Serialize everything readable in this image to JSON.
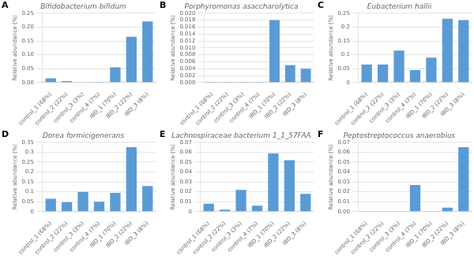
{
  "chart_data": [
    {
      "type": "bar",
      "title": "Bifidobacterium bifidum",
      "annotations": [
        "A"
      ],
      "ylabel": "Relative abundance (%)",
      "categories": [
        "control_1 (68%)",
        "control_2 (22%)",
        "control_3 (3%)",
        "control_4 (7%)",
        "IBD_1 (70%)",
        "IBD_2 (22%)",
        "IBD_3 (8%)"
      ],
      "values": [
        0.015,
        0.005,
        0.002,
        0.001,
        0.055,
        0.165,
        0.22
      ],
      "color": "#5B9BD5",
      "ylim": [
        0,
        0.25
      ],
      "yticks": [
        {
          "value": 0,
          "label": "0.00"
        },
        0.05,
        {
          "value": 0.1,
          "label": "0.10"
        },
        0.15,
        {
          "value": 0.2,
          "label": "0.20"
        },
        0.25
      ],
      "grid": true
    },
    {
      "type": "bar",
      "title": "Porphyromonas asaccharolytica",
      "annotations": [
        "B"
      ],
      "ylabel": "Relative abundance (%)",
      "categories": [
        "control_1 (68%)",
        "control_2 (22%)",
        "control_3 (3%)",
        "control_4 (7%)",
        "IBD_1 (70%)",
        "IBD_2 (22%)",
        "IBD_3 (8%)"
      ],
      "values": [
        0.0001,
        0.0001,
        0.0001,
        0.0001,
        0.018,
        0.005,
        0.004
      ],
      "color": "#5B9BD5",
      "ylim": [
        0,
        0.02
      ],
      "yticks": [
        {
          "value": 0,
          "label": "0.000"
        },
        0.002,
        0.004,
        0.006,
        0.008,
        {
          "value": 0.01,
          "label": "0.010"
        },
        0.012,
        0.014,
        0.016,
        0.018,
        {
          "value": 0.02,
          "label": "0.020"
        }
      ],
      "grid": true
    },
    {
      "type": "bar",
      "title": "Eubacterium hallii",
      "annotations": [
        "C"
      ],
      "ylabel": "Relative abundance (%)",
      "categories": [
        "control_1 (68%)",
        "control_2 (22%)",
        "control_3 (3%)",
        "control_4 (7%)",
        "IBD_1 (70%)",
        "IBD_2 (22%)",
        "IBD_3 (8%)"
      ],
      "values": [
        0.065,
        0.065,
        0.115,
        0.045,
        0.09,
        0.23,
        0.225
      ],
      "color": "#5B9BD5",
      "ylim": [
        0,
        0.25
      ],
      "yticks": [
        0,
        0.05,
        0.1,
        0.15,
        0.2,
        0.25
      ],
      "grid": true
    },
    {
      "type": "bar",
      "title": "Dorea formicigenerans",
      "annotations": [
        "D"
      ],
      "ylabel": "Relative abundance (%)",
      "categories": [
        "control_1 (68%)",
        "control_2 (22%)",
        "control_3 (3%)",
        "control_4 (7%)",
        "IBD_1 (70%)",
        "IBD_2 (22%)",
        "IBD_3 (8%)"
      ],
      "values": [
        0.065,
        0.048,
        0.1,
        0.05,
        0.095,
        0.325,
        0.13
      ],
      "color": "#5B9BD5",
      "ylim": [
        0,
        0.35
      ],
      "yticks": [
        0,
        0.05,
        0.1,
        0.15,
        0.2,
        0.25,
        0.3,
        0.35
      ],
      "grid": true
    },
    {
      "type": "bar",
      "title": "Lachnospiraceae bacterium 1_1_57FAA",
      "annotations": [
        "E"
      ],
      "ylabel": "Relative abundance (%)",
      "categories": [
        "control_1 (68%)",
        "control_2 (22%)",
        "control_3 (3%)",
        "control_4 (7%)",
        "IBD_1 (70%)",
        "IBD_2 (22%)",
        "IBD_3 (8%)"
      ],
      "values": [
        0.008,
        0.002,
        0.022,
        0.006,
        0.059,
        0.052,
        0.018
      ],
      "color": "#5B9BD5",
      "ylim": [
        0,
        0.07
      ],
      "yticks": [
        0,
        0.01,
        0.02,
        0.03,
        0.04,
        0.05,
        0.06,
        0.07
      ],
      "grid": true
    },
    {
      "type": "bar",
      "title": "Peptostreptococcus anaerobius",
      "annotations": [
        "F"
      ],
      "ylabel": "Relative abundance (%)",
      "categories": [
        "control_1 (68%)",
        "control_2 (22%)",
        "control_3 (3%)",
        "control_4 (7%)",
        "IBD_1 (70%)",
        "IBD_2 (22%)",
        "IBD_3 (8%)"
      ],
      "values": [
        0.0,
        0.0,
        0.0,
        0.027,
        0.0,
        0.004,
        0.065
      ],
      "color": "#5B9BD5",
      "ylim": [
        0,
        0.07
      ],
      "yticks": [
        {
          "value": 0,
          "label": "0.00"
        },
        0.01,
        0.02,
        0.03,
        0.04,
        0.05,
        0.06,
        0.07
      ],
      "grid": true
    }
  ]
}
